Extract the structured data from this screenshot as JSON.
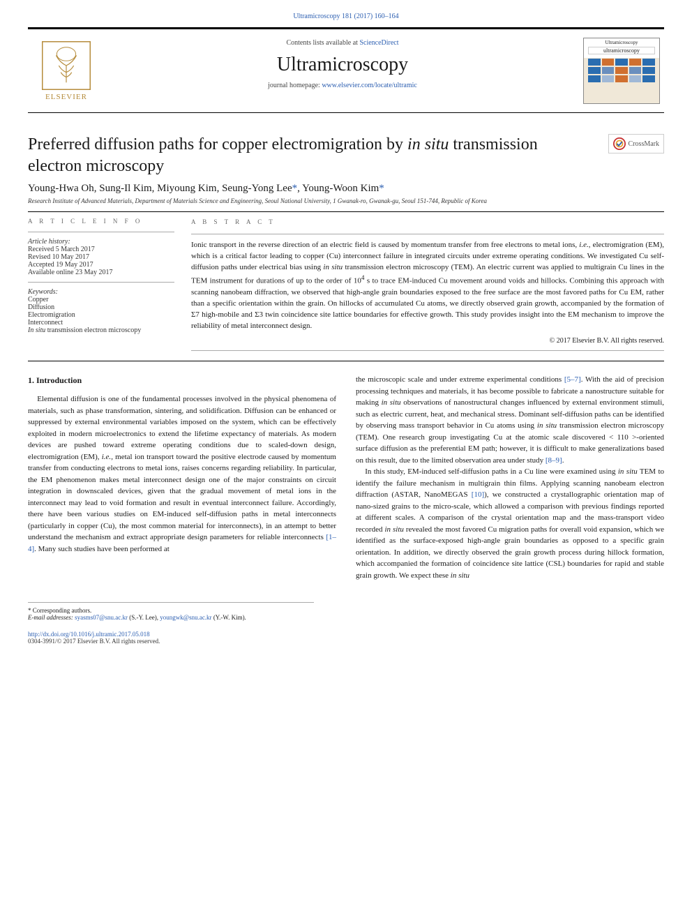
{
  "header": {
    "citation": "Ultramicroscopy 181 (2017) 160–164",
    "contents_prefix": "Contents lists available at ",
    "contents_link": "ScienceDirect",
    "journal_name": "Ultramicroscopy",
    "homepage_prefix": "journal homepage: ",
    "homepage_url": "www.elsevier.com/locate/ultramic",
    "publisher_name": "ELSEVIER",
    "crossmark_label": "CrossMark",
    "cover": {
      "top_label": "Ultramicroscopy",
      "journal_box": "ultramicroscopy",
      "grid_colors": [
        "#2a6db0",
        "#d07030",
        "#2a6db0",
        "#d07030",
        "#2a6db0",
        "#2a6db0",
        "#6a8fbe",
        "#d07030",
        "#6a8fbe",
        "#2a6db0",
        "#2a6db0",
        "#a0b8d6",
        "#d07030",
        "#a0b8d6",
        "#2a6db0"
      ]
    }
  },
  "article": {
    "title_html": "Preferred diffusion paths for copper electromigration by <i>in situ</i> transmission electron microscopy",
    "authors_html": "Young-Hwa Oh, Sung-Il Kim, Miyoung Kim, Seung-Yong Lee<span class='star'>*</span>, Young-Woon Kim<span class='star'>*</span>",
    "affiliation": "Research Institute of Advanced Materials, Department of Materials Science and Engineering, Seoul National University, 1 Gwanak-ro, Gwanak-gu, Seoul 151-744, Republic of Korea"
  },
  "info": {
    "heading": "a r t i c l e   i n f o",
    "history_label": "Article history:",
    "history": [
      "Received 5 March 2017",
      "Revised 10 May 2017",
      "Accepted 19 May 2017",
      "Available online 23 May 2017"
    ],
    "keywords_label": "Keywords:",
    "keywords_html": "Copper<br>Diffusion<br>Electromigration<br>Interconnect<br><i>In situ</i> transmission electron microscopy"
  },
  "abstract": {
    "heading": "a b s t r a c t",
    "text_html": "Ionic transport in the reverse direction of an electric field is caused by momentum transfer from free electrons to metal ions, <i>i.e.</i>, electromigration (EM), which is a critical factor leading to copper (Cu) interconnect failure in integrated circuits under extreme operating conditions. We investigated Cu self-diffusion paths under electrical bias using <i>in situ</i> transmission electron microscopy (TEM). An electric current was applied to multigrain Cu lines in the TEM instrument for durations of up to the order of 10<sup>4</sup> s to trace EM-induced Cu movement around voids and hillocks. Combining this approach with scanning nanobeam diffraction, we observed that high-angle grain boundaries exposed to the free surface are the most favored paths for Cu EM, rather than a specific orientation within the grain. On hillocks of accumulated Cu atoms, we directly observed grain growth, accompanied by the formation of Σ7 high-mobile and Σ3 twin coincidence site lattice boundaries for effective growth. This study provides insight into the EM mechanism to improve the reliability of metal interconnect design.",
    "copyright": "© 2017 Elsevier B.V. All rights reserved."
  },
  "body": {
    "section_heading": "1. Introduction",
    "col1_html": "Elemental diffusion is one of the fundamental processes involved in the physical phenomena of materials, such as phase transformation, sintering, and solidification. Diffusion can be enhanced or suppressed by external environmental variables imposed on the system, which can be effectively exploited in modern microelectronics to extend the lifetime expectancy of materials. As modern devices are pushed toward extreme operating conditions due to scaled-down design, electromigration (EM), <i>i.e.</i>, metal ion transport toward the positive electrode caused by momentum transfer from conducting electrons to metal ions, raises concerns regarding reliability. In particular, the EM phenomenon makes metal interconnect design one of the major constraints on circuit integration in downscaled devices, given that the gradual movement of metal ions in the interconnect may lead to void formation and result in eventual interconnect failure. Accordingly, there have been various studies on EM-induced self-diffusion paths in metal interconnects (particularly in copper (Cu), the most common material for interconnects), in an attempt to better understand the mechanism and extract appropriate design parameters for reliable interconnects <span class='reflink'>[1–4]</span>. Many such studies have been performed at",
    "col2_p1_html": "the microscopic scale and under extreme experimental conditions <span class='reflink'>[5–7]</span>. With the aid of precision processing techniques and materials, it has become possible to fabricate a nanostructure suitable for making <i>in situ</i> observations of nanostructural changes influenced by external environment stimuli, such as electric current, heat, and mechanical stress. Dominant self-diffusion paths can be identified by observing mass transport behavior in Cu atoms using <i>in situ</i> transmission electron microscopy (TEM). One research group investigating Cu at the atomic scale discovered &lt; 110 &gt;-oriented surface diffusion as the preferential EM path; however, it is difficult to make generalizations based on this result, due to the limited observation area under study <span class='reflink'>[8–9]</span>.",
    "col2_p2_html": "In this study, EM-induced self-diffusion paths in a Cu line were examined using <i>in situ</i> TEM to identify the failure mechanism in multigrain thin films. Applying scanning nanobeam electron diffraction (ASTAR, NanoMEGAS <span class='reflink'>[10]</span>), we constructed a crystallographic orientation map of nano-sized grains to the micro-scale, which allowed a comparison with previous findings reported at different scales. A comparison of the crystal orientation map and the mass-transport video recorded <i>in situ</i> revealed the most favored Cu migration paths for overall void expansion, which we identified as the surface-exposed high-angle grain boundaries as opposed to a specific grain orientation. In addition, we directly observed the grain growth process during hillock formation, which accompanied the formation of coincidence site lattice (CSL) boundaries for rapid and stable grain growth. We expect these <i>in situ</i>"
  },
  "footnotes": {
    "corr": "* Corresponding authors.",
    "email_label": "E-mail addresses:",
    "email1": "syasms07@snu.ac.kr",
    "email1_who": "(S.-Y. Lee),",
    "email2": "youngwk@snu.ac.kr",
    "email2_who": "(Y.-W. Kim)."
  },
  "footer": {
    "doi": "http://dx.doi.org/10.1016/j.ultramic.2017.05.018",
    "issn_line": "0304-3991/© 2017 Elsevier B.V. All rights reserved."
  },
  "colors": {
    "link": "#2a5db0",
    "elsevier": "#b58b3a",
    "text": "#1a1a1a"
  }
}
